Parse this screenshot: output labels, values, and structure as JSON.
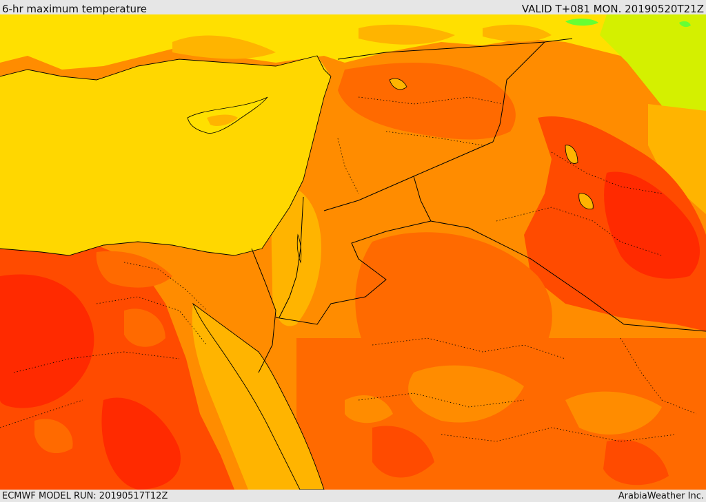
{
  "header": {
    "title": "6-hr maximum temperature",
    "valid": "VALID T+081 MON. 20190520T21Z"
  },
  "footer": {
    "model_run": "ECMWF MODEL RUN: 20190517T12Z",
    "credit": "ArabiaWeather Inc."
  },
  "colors": {
    "sea": "#ffd700",
    "yellow": "#ffe000",
    "light_orange": "#ffb400",
    "orange": "#ff8c00",
    "dark_orange": "#ff6a00",
    "red_orange": "#ff4b00",
    "red": "#ff2a00",
    "yellow_green": "#d4f000",
    "green": "#66ff33",
    "coast": "#000000",
    "border": "#000000"
  }
}
